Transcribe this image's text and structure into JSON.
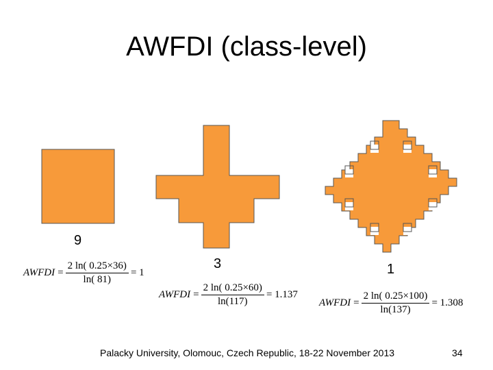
{
  "title": "AWFDI (class-level)",
  "colors": {
    "fill": "#F79A3A",
    "stroke": "#555555"
  },
  "shapes": [
    {
      "name": "square",
      "value": "9",
      "equation": {
        "lhs": "AWFDI",
        "eq": "=",
        "numerator": "2 ln( 0.25×36)",
        "denominator": "ln( 81)",
        "rhs": "= 1"
      }
    },
    {
      "name": "cross",
      "value": "3",
      "equation": {
        "lhs": "AWFDI",
        "eq": "=",
        "numerator": "2 ln( 0.25×60)",
        "denominator": "ln(117)",
        "rhs": "= 1.137"
      }
    },
    {
      "name": "diamond",
      "value": "1",
      "equation": {
        "lhs": "AWFDI",
        "eq": "=",
        "numerator": "2 ln( 0.25×100)",
        "denominator": "ln(137)",
        "rhs": "= 1.308"
      }
    }
  ],
  "footer": "Palacky University, Olomouc, Czech Republic, 18-22 November 2013",
  "page_number": "34"
}
